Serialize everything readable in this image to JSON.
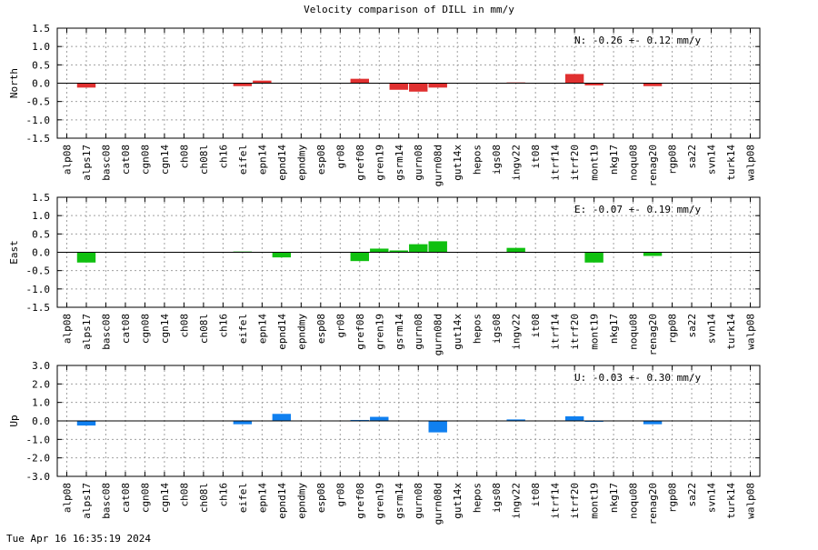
{
  "title": "Velocity comparison of DILL in mm/y",
  "footer": "Tue Apr 16 16:35:19 2024",
  "chart_data": [
    {
      "type": "bar",
      "ylabel": "North",
      "color": "#e03030",
      "ylim": [
        -1.5,
        1.5
      ],
      "yticks": [
        -1.5,
        -1.0,
        -0.5,
        0.0,
        0.5,
        1.0,
        1.5
      ],
      "ytick_labels": [
        "-1.5",
        "-1.0",
        "-0.5",
        "0.0",
        "0.5",
        "1.0",
        "1.5"
      ],
      "annotation": "N:  -0.26 +-  0.12 mm/y",
      "categories": [
        "alp08",
        "alps17",
        "basc08",
        "cat08",
        "cgn08",
        "cgn14",
        "ch08",
        "ch08l",
        "ch16",
        "eifel",
        "epn14",
        "epnd14",
        "epndmy",
        "esp08",
        "gr08",
        "gref08",
        "gren19",
        "gsrm14",
        "gurn08",
        "gurn08d",
        "gut14x",
        "hepos",
        "igs08",
        "ingv22",
        "it08",
        "itrf14",
        "itrf20",
        "mont19",
        "nkg17",
        "noqu08",
        "renag20",
        "rgp08",
        "sa22",
        "svn14",
        "turk14",
        "walp08"
      ],
      "values": [
        0,
        -0.12,
        0,
        0,
        0,
        0,
        0,
        0,
        0,
        -0.08,
        0.07,
        0,
        0,
        0,
        0,
        0.12,
        0,
        -0.18,
        -0.23,
        -0.12,
        0,
        0,
        0,
        0.02,
        0,
        0,
        0.25,
        -0.06,
        0,
        0,
        -0.08,
        0,
        0,
        0,
        0,
        0
      ]
    },
    {
      "type": "bar",
      "ylabel": "East",
      "color": "#10c010",
      "ylim": [
        -1.5,
        1.5
      ],
      "yticks": [
        -1.5,
        -1.0,
        -0.5,
        0.0,
        0.5,
        1.0,
        1.5
      ],
      "ytick_labels": [
        "-1.5",
        "-1.0",
        "-0.5",
        "0.0",
        "0.5",
        "1.0",
        "1.5"
      ],
      "annotation": "E:  -0.07 +-  0.19 mm/y",
      "categories": [
        "alp08",
        "alps17",
        "basc08",
        "cat08",
        "cgn08",
        "cgn14",
        "ch08",
        "ch08l",
        "ch16",
        "eifel",
        "epn14",
        "epnd14",
        "epndmy",
        "esp08",
        "gr08",
        "gref08",
        "gren19",
        "gsrm14",
        "gurn08",
        "gurn08d",
        "gut14x",
        "hepos",
        "igs08",
        "ingv22",
        "it08",
        "itrf14",
        "itrf20",
        "mont19",
        "nkg17",
        "noqu08",
        "renag20",
        "rgp08",
        "sa22",
        "svn14",
        "turk14",
        "walp08"
      ],
      "values": [
        0,
        -0.28,
        0,
        0,
        0,
        0,
        0,
        0,
        0,
        0.02,
        0,
        -0.14,
        0,
        0,
        0,
        -0.24,
        0.1,
        0.05,
        0.22,
        0.3,
        0,
        0,
        0,
        0.12,
        0,
        0,
        0,
        -0.28,
        0,
        0,
        -0.1,
        0,
        0,
        0,
        0,
        0
      ]
    },
    {
      "type": "bar",
      "ylabel": "Up",
      "color": "#1080f0",
      "ylim": [
        -3.0,
        3.0
      ],
      "yticks": [
        -3.0,
        -2.0,
        -1.0,
        0.0,
        1.0,
        2.0,
        3.0
      ],
      "ytick_labels": [
        "-3.0",
        "-2.0",
        "-1.0",
        "0.0",
        "1.0",
        "2.0",
        "3.0"
      ],
      "annotation": "U:  -0.03 +-  0.30 mm/y",
      "categories": [
        "alp08",
        "alps17",
        "basc08",
        "cat08",
        "cgn08",
        "cgn14",
        "ch08",
        "ch08l",
        "ch16",
        "eifel",
        "epn14",
        "epnd14",
        "epndmy",
        "esp08",
        "gr08",
        "gref08",
        "gren19",
        "gsrm14",
        "gurn08",
        "gurn08d",
        "gut14x",
        "hepos",
        "igs08",
        "ingv22",
        "it08",
        "itrf14",
        "itrf20",
        "mont19",
        "nkg17",
        "noqu08",
        "renag20",
        "rgp08",
        "sa22",
        "svn14",
        "turk14",
        "walp08"
      ],
      "values": [
        0,
        -0.25,
        0,
        0,
        0,
        0,
        0,
        0,
        0,
        -0.18,
        0,
        0.38,
        0,
        0,
        0,
        0.05,
        0.22,
        0,
        0,
        -0.62,
        0,
        0,
        0,
        0.08,
        0,
        0,
        0.25,
        -0.05,
        0,
        0,
        -0.18,
        0,
        0,
        0,
        0,
        0
      ]
    }
  ]
}
